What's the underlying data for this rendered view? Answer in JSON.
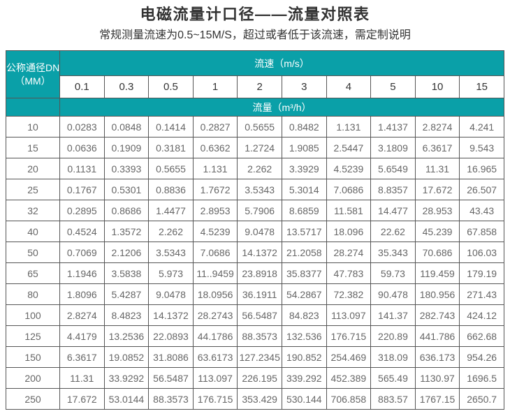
{
  "header": {
    "title": "电磁流量计口径——流量对照表",
    "subtitle": "常规测量流速为0.5~15M/S，超过或者低于该流速，需定制说明"
  },
  "colors": {
    "accent": "#0AA0A8",
    "border": "#555555"
  },
  "table": {
    "corner": {
      "line1": "公称通径DN",
      "line2": "（MM）"
    },
    "velocity_header": "流速（m/s）",
    "flow_header": "流量（m³/h）",
    "velocities": [
      "0.1",
      "0.3",
      "0.5",
      "1",
      "2",
      "3",
      "4",
      "5",
      "10",
      "15"
    ],
    "rows": [
      {
        "dn": "10",
        "values": [
          "0.0283",
          "0.0848",
          "0.1414",
          "0.2827",
          "0.5655",
          "0.8482",
          "1.131",
          "1.4137",
          "2.8274",
          "4.241"
        ]
      },
      {
        "dn": "15",
        "values": [
          "0.0636",
          "0.1909",
          "0.3181",
          "0.6362",
          "1.2724",
          "1.9085",
          "2.5447",
          "3.1809",
          "6.3617",
          "9.543"
        ]
      },
      {
        "dn": "20",
        "values": [
          "0.1131",
          "0.3393",
          "0.5655",
          "1.131",
          "2.262",
          "3.3929",
          "4.5239",
          "5.6549",
          "11.31",
          "16.965"
        ]
      },
      {
        "dn": "25",
        "values": [
          "0.1767",
          "0.5301",
          "0.8836",
          "1.7672",
          "3.5343",
          "5.3014",
          "7.0686",
          "8.8357",
          "17.672",
          "26.507"
        ]
      },
      {
        "dn": "32",
        "values": [
          "0.2895",
          "0.8686",
          "1.4477",
          "2.8953",
          "5.7906",
          "8.6859",
          "11.581",
          "14.477",
          "28.953",
          "43.43"
        ]
      },
      {
        "dn": "40",
        "values": [
          "0.4524",
          "1.3572",
          "2.262",
          "4.5239",
          "9.0478",
          "13.5717",
          "18.096",
          "22.62",
          "45.239",
          "67.858"
        ]
      },
      {
        "dn": "50",
        "values": [
          "0.7069",
          "2.1206",
          "3.5343",
          "7.0686",
          "14.1372",
          "21.2058",
          "28.274",
          "35.343",
          "70.686",
          "106.03"
        ]
      },
      {
        "dn": "65",
        "values": [
          "1.1946",
          "3.5838",
          "5.973",
          "11..9459",
          "23.8918",
          "35.8377",
          "47.783",
          "59.73",
          "119.459",
          "179.19"
        ]
      },
      {
        "dn": "80",
        "values": [
          "1.8096",
          "5.4287",
          "9.0478",
          "18.0956",
          "36.1911",
          "54.2867",
          "72.382",
          "90.478",
          "180.956",
          "271.43"
        ]
      },
      {
        "dn": "100",
        "values": [
          "2.8274",
          "8.4823",
          "14.1372",
          "28.2743",
          "56.5487",
          "84.823",
          "113.097",
          "141.37",
          "282.743",
          "424.12"
        ]
      },
      {
        "dn": "125",
        "values": [
          "4.4179",
          "13.2536",
          "22.0893",
          "44.1786",
          "88.3573",
          "132.536",
          "176.715",
          "220.89",
          "441.786",
          "662.68"
        ]
      },
      {
        "dn": "150",
        "values": [
          "6.3617",
          "19.0852",
          "31.8086",
          "63.6173",
          "127.2345",
          "190.852",
          "254.469",
          "318.09",
          "636.173",
          "954.26"
        ]
      },
      {
        "dn": "200",
        "values": [
          "11.31",
          "33.9292",
          "56.5487",
          "113.097",
          "226.195",
          "339.292",
          "452.389",
          "565.49",
          "1130.97",
          "1696.5"
        ]
      },
      {
        "dn": "250",
        "values": [
          "17.672",
          "53.0144",
          "88.3573",
          "176.715",
          "353.429",
          "530.144",
          "706.858",
          "883.57",
          "1767.15",
          "2650.7"
        ]
      }
    ]
  }
}
